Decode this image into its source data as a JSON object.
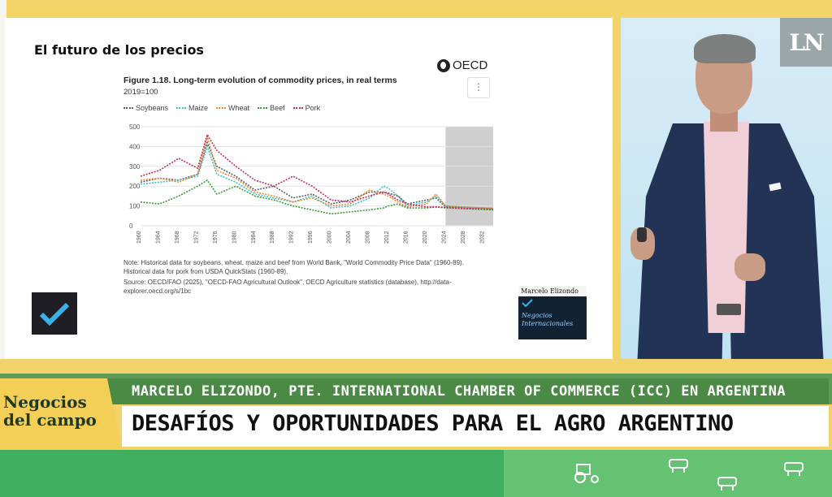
{
  "slide": {
    "title": "El futuro de los precios",
    "figure_title": "Figure 1.18. Long-term evolution of commodity prices, in real terms",
    "figure_subtitle": "2019=100",
    "menu_glyph": "⋮",
    "oecd_label": "OECD",
    "note": "Note: Historical data for soybeans, wheat, maize and beef from World Bank, \"World Commodity Price Data\" (1960-89). Historical data for pork from USDA QuickStats (1960-89).",
    "source": "Source: OECD/FAO (2025), \"OECD-FAO Agricultural Outlook\", OECD Agriculture statistics (database), http://data-explorer.oecd.org/s/1bc",
    "brand_name": "Marcelo Elizondo",
    "brand_tagline": "Negocios Internacionales"
  },
  "chart_data": {
    "type": "line",
    "x": [
      1960,
      1964,
      1968,
      1972,
      1974,
      1976,
      1980,
      1984,
      1988,
      1992,
      1996,
      2000,
      2004,
      2008,
      2011,
      2012,
      2014,
      2016,
      2020,
      2022,
      2024,
      2026,
      2028,
      2030,
      2032,
      2034
    ],
    "series": [
      {
        "name": "Soybeans",
        "color": "#555f6a",
        "values": [
          220,
          240,
          230,
          260,
          420,
          300,
          250,
          180,
          200,
          140,
          160,
          110,
          130,
          170,
          170,
          165,
          150,
          110,
          130,
          140,
          95,
          95,
          92,
          90,
          88,
          85
        ]
      },
      {
        "name": "Maize",
        "color": "#3ec2c8",
        "values": [
          210,
          220,
          230,
          250,
          400,
          260,
          220,
          160,
          140,
          120,
          150,
          90,
          100,
          140,
          200,
          190,
          150,
          100,
          120,
          150,
          100,
          98,
          95,
          92,
          90,
          88
        ]
      },
      {
        "name": "Wheat",
        "color": "#f08a2c",
        "values": [
          230,
          240,
          220,
          260,
          450,
          280,
          240,
          170,
          150,
          120,
          140,
          100,
          110,
          180,
          160,
          150,
          120,
          95,
          110,
          160,
          100,
          96,
          94,
          92,
          90,
          88
        ]
      },
      {
        "name": "Beef",
        "color": "#3a9a3a",
        "values": [
          120,
          110,
          150,
          200,
          230,
          160,
          200,
          150,
          130,
          100,
          80,
          60,
          70,
          80,
          90,
          100,
          110,
          90,
          90,
          95,
          90,
          88,
          86,
          84,
          82,
          80
        ]
      },
      {
        "name": "Pork",
        "color": "#c8285a",
        "values": [
          250,
          280,
          340,
          290,
          460,
          380,
          300,
          230,
          200,
          250,
          200,
          130,
          120,
          150,
          170,
          160,
          130,
          110,
          95,
          95,
          92,
          90,
          88,
          86,
          85,
          84
        ]
      }
    ],
    "ylim": [
      0,
      500
    ],
    "yticks": [
      "500",
      "400",
      "300",
      "200",
      "100",
      "0"
    ],
    "xticks": [
      "1960",
      "1964",
      "1968",
      "1972",
      "1976",
      "1980",
      "1984",
      "1988",
      "1992",
      "1996",
      "2000",
      "2004",
      "2008",
      "2012",
      "2016",
      "2020",
      "2024",
      "2028",
      "2032"
    ],
    "projection_start": 2024,
    "grid": true,
    "legend": "top-left"
  },
  "banner": {
    "show_name": "Negocios del campo",
    "guest_line": "MARCELO ELIZONDO, PTE. INTERNATIONAL CHAMBER OF COMMERCE (ICC) EN ARGENTINA",
    "headline": "DESAFÍOS Y OPORTUNIDADES PARA EL AGRO ARGENTINO"
  },
  "channel": {
    "logo": "LN"
  }
}
